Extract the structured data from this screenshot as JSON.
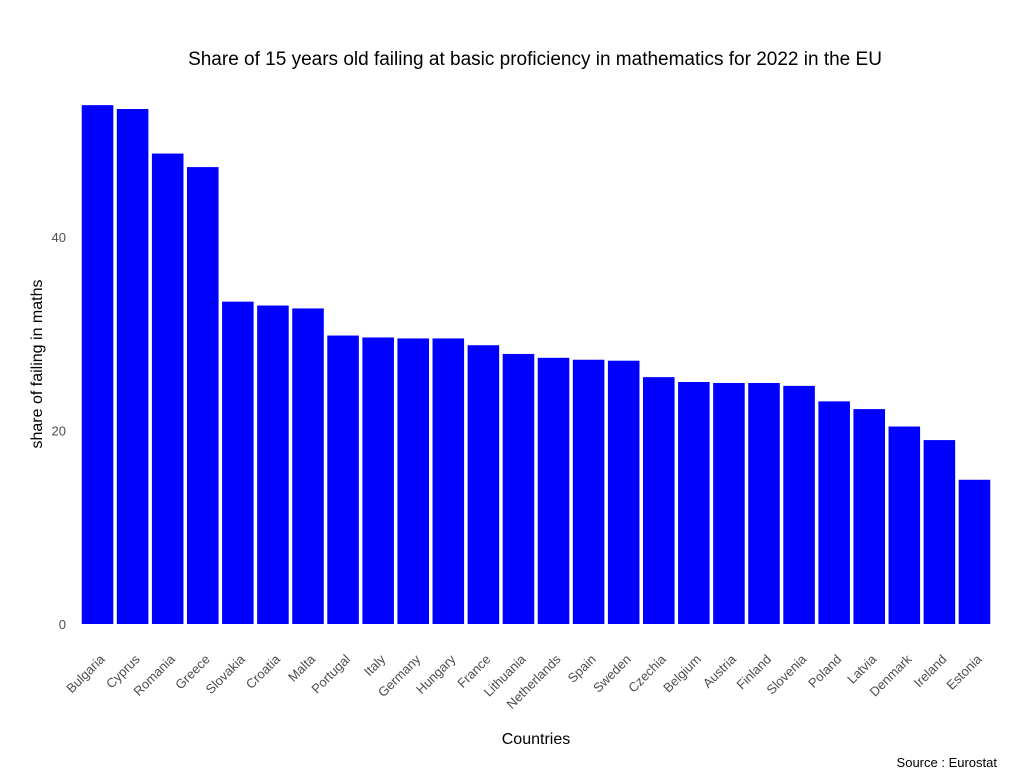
{
  "chart_data": {
    "type": "bar",
    "title": "Share of 15 years old failing at basic proficiency in mathematics for 2022 in the EU",
    "xlabel": "Countries",
    "ylabel": "share of failing in maths",
    "source": "Source : Eurostat",
    "categories": [
      "Bulgaria",
      "Cyprus",
      "Romania",
      "Greece",
      "Slovakia",
      "Croatia",
      "Malta",
      "Portugal",
      "Italy",
      "Germany",
      "Hungary",
      "France",
      "Lithuania",
      "Netherlands",
      "Spain",
      "Sweden",
      "Czechia",
      "Belgium",
      "Austria",
      "Finland",
      "Slovenia",
      "Poland",
      "Latvia",
      "Denmark",
      "Ireland",
      "Estonia"
    ],
    "values": [
      53.6,
      53.2,
      48.6,
      47.2,
      33.3,
      32.9,
      32.6,
      29.8,
      29.6,
      29.5,
      29.5,
      28.8,
      27.9,
      27.5,
      27.3,
      27.2,
      25.5,
      25.0,
      24.9,
      24.9,
      24.6,
      23.0,
      22.2,
      20.4,
      19.0,
      14.9
    ],
    "yticks": [
      0,
      20,
      40
    ],
    "ylim": [
      0,
      55
    ],
    "bar_color": "#0000ff",
    "grid": false,
    "legend": "none"
  }
}
